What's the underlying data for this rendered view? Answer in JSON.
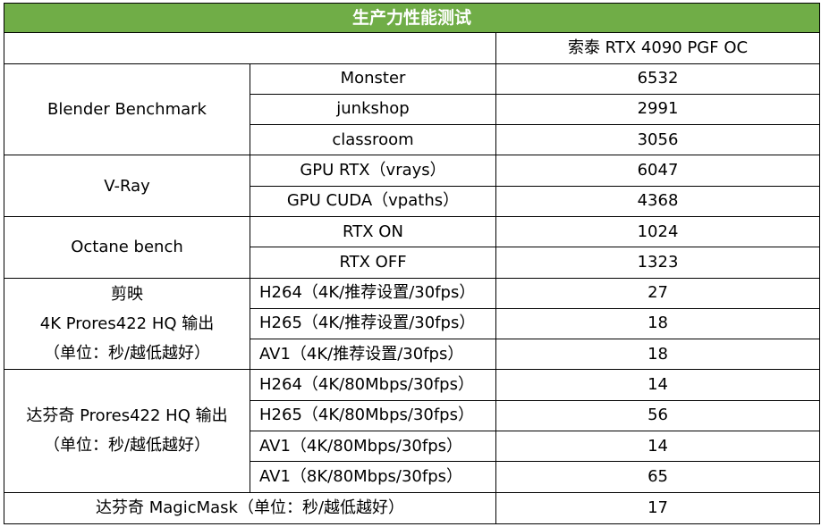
{
  "title": "生产力性能测试",
  "header": {
    "corner": "",
    "product": "索泰 RTX 4090 PGF OC"
  },
  "groups": [
    {
      "label": "Blender Benchmark",
      "rows": [
        {
          "test": "Monster",
          "value": "6532"
        },
        {
          "test": "junkshop",
          "value": "2991"
        },
        {
          "test": "classroom",
          "value": "3056"
        }
      ]
    },
    {
      "label": "V-Ray",
      "rows": [
        {
          "test": "GPU RTX（vrays）",
          "value": "6047"
        },
        {
          "test": "GPU CUDA（vpaths）",
          "value": "4368"
        }
      ]
    },
    {
      "label": "Octane bench",
      "rows": [
        {
          "test": "RTX ON",
          "value": "1024"
        },
        {
          "test": "RTX OFF",
          "value": "1323"
        }
      ]
    },
    {
      "label_lines": [
        "剪映",
        "4K Prores422 HQ 输出",
        "（单位：秒/越低越好）"
      ],
      "rows": [
        {
          "test": "H264（4K/推荐设置/30fps）",
          "value": "27"
        },
        {
          "test": "H265（4K/推荐设置/30fps）",
          "value": "18"
        },
        {
          "test": "AV1（4K/推荐设置/30fps）",
          "value": "18"
        }
      ]
    },
    {
      "label_lines": [
        "达芬奇  Prores422 HQ 输出",
        "（单位：秒/越低越好）"
      ],
      "rows": [
        {
          "test": "H264（4K/80Mbps/30fps）",
          "value": "14"
        },
        {
          "test": "H265（4K/80Mbps/30fps）",
          "value": "56"
        },
        {
          "test": "AV1（4K/80Mbps/30fps）",
          "value": "14"
        },
        {
          "test": "AV1（8K/80Mbps/30fps）",
          "value": "65"
        }
      ]
    }
  ],
  "footer": {
    "label": "达芬奇 MagicMask（单位：秒/越低越好）",
    "value": "17"
  }
}
